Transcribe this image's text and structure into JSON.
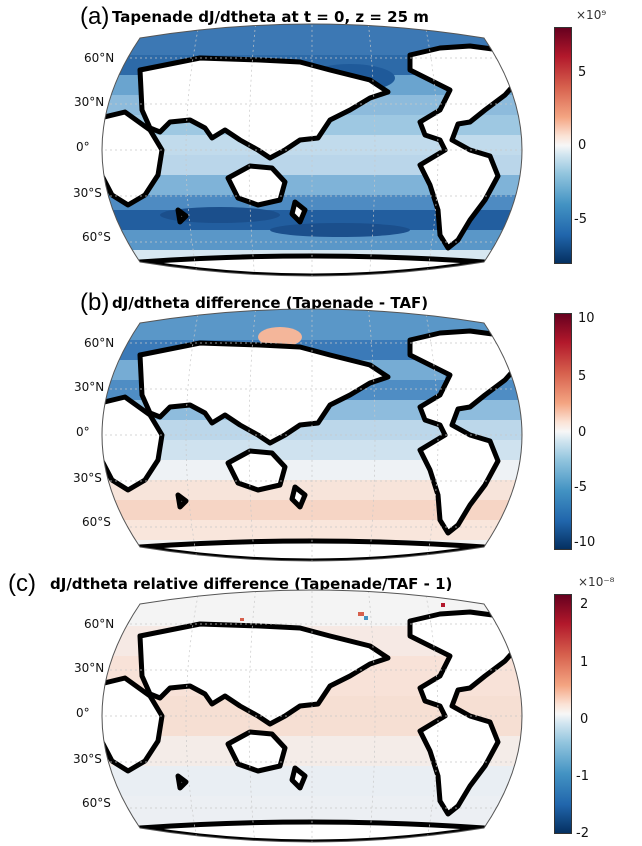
{
  "chart_data": [
    {
      "type": "heatmap",
      "panel": "(a)",
      "title": "Tapenade dJ/dtheta at t = 0, z = 25 m",
      "lat_labels": [
        "60°N",
        "30°N",
        "0°",
        "30°S",
        "60°S"
      ],
      "colorbar": {
        "exponent": "×10⁹",
        "range": [
          -8.5,
          8.5
        ],
        "ticks": [
          7,
          5,
          0,
          -5
        ],
        "tick_labels": [
          "",
          "5",
          "0",
          "-5"
        ]
      },
      "colormap": "blue-white-red"
    },
    {
      "type": "heatmap",
      "panel": "(b)",
      "title": "dJ/dtheta difference (Tapenade - TAF)",
      "lat_labels": [
        "60°N",
        "30°N",
        "0°",
        "30°S",
        "60°S"
      ],
      "colorbar": {
        "exponent": "",
        "range": [
          -11,
          11
        ],
        "ticks": [
          10,
          5,
          0,
          -5,
          -10
        ],
        "tick_labels": [
          "10",
          "5",
          "0",
          "-5",
          "-10"
        ]
      },
      "colormap": "blue-white-red"
    },
    {
      "type": "heatmap",
      "panel": "(c)",
      "title": "dJ/dtheta relative difference (Tapenade/TAF - 1)",
      "lat_labels": [
        "60°N",
        "30°N",
        "0°",
        "30°S",
        "60°S"
      ],
      "colorbar": {
        "exponent": "×10⁻⁸",
        "range": [
          -2.2,
          2.2
        ],
        "ticks": [
          2,
          1,
          0,
          -1,
          -2
        ],
        "tick_labels": [
          "2",
          "1",
          "0",
          "-1",
          "-2"
        ]
      },
      "colormap": "blue-white-red"
    }
  ],
  "colors": {
    "dark_red": "#67001f",
    "red": "#d6604d",
    "light_red": "#f4a582",
    "white": "#f7f7f7",
    "light_blue": "#92c5de",
    "blue": "#4393c3",
    "dark_blue": "#053061",
    "land": "#ffffff",
    "coast": "#000000"
  }
}
